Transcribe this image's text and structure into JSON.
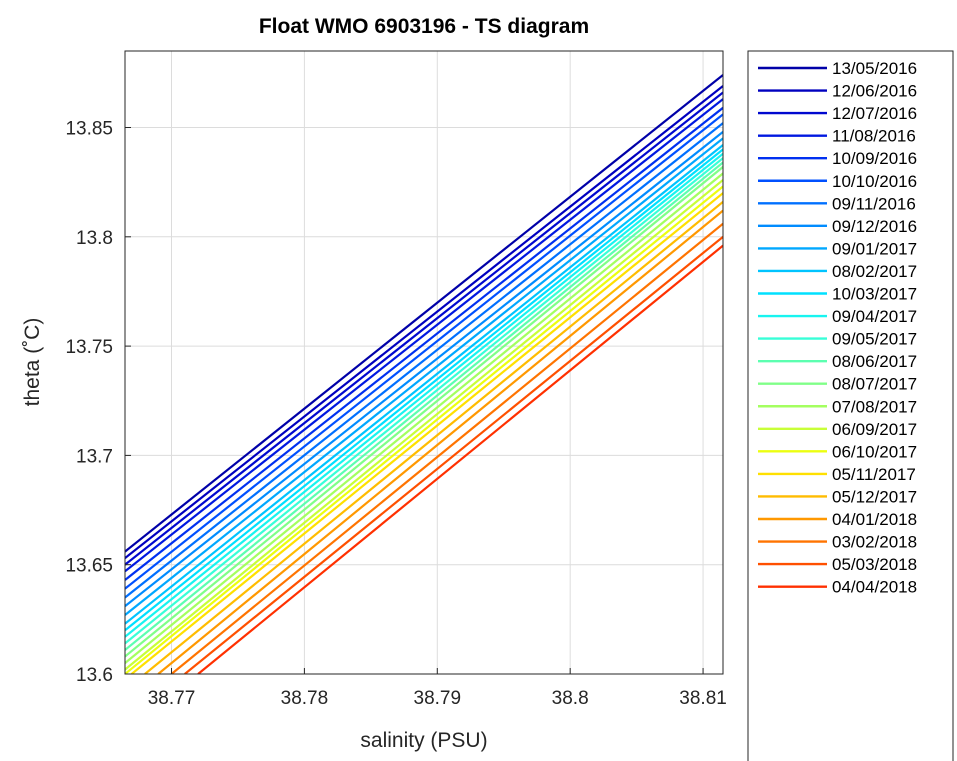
{
  "chart_data": {
    "type": "line",
    "title": "Float WMO 6903196 - TS diagram",
    "xlabel": "salinity (PSU)",
    "ylabel": "theta (˚C)",
    "xlim": [
      38.7665,
      38.8115
    ],
    "ylim": [
      13.6,
      13.885
    ],
    "x_ticks": [
      38.77,
      38.78,
      38.79,
      38.8,
      38.81
    ],
    "x_tick_labels": [
      "38.77",
      "38.78",
      "38.79",
      "38.8",
      "38.81"
    ],
    "y_ticks": [
      13.6,
      13.65,
      13.7,
      13.75,
      13.8,
      13.85
    ],
    "y_tick_labels": [
      "13.6",
      "13.65",
      "13.7",
      "13.75",
      "13.8",
      "13.85"
    ],
    "grid": true,
    "legend_position": "outside-right",
    "series": [
      {
        "name": "13/05/2016",
        "color": "#0000a8",
        "x": [
          38.7665,
          38.8115
        ],
        "y": [
          13.656,
          13.874
        ]
      },
      {
        "name": "12/06/2016",
        "color": "#0000bf",
        "x": [
          38.7665,
          38.8115
        ],
        "y": [
          13.653,
          13.869
        ]
      },
      {
        "name": "12/07/2016",
        "color": "#0008cf",
        "x": [
          38.7665,
          38.8115
        ],
        "y": [
          13.65,
          13.866
        ]
      },
      {
        "name": "11/08/2016",
        "color": "#0018e0",
        "x": [
          38.7665,
          38.8115
        ],
        "y": [
          13.647,
          13.863
        ]
      },
      {
        "name": "10/09/2016",
        "color": "#0030f0",
        "x": [
          38.7665,
          38.8115
        ],
        "y": [
          13.643,
          13.859
        ]
      },
      {
        "name": "10/10/2016",
        "color": "#0050ff",
        "x": [
          38.7665,
          38.8115
        ],
        "y": [
          13.639,
          13.856
        ]
      },
      {
        "name": "09/11/2016",
        "color": "#0070ff",
        "x": [
          38.7665,
          38.8115
        ],
        "y": [
          13.635,
          13.852
        ]
      },
      {
        "name": "09/12/2016",
        "color": "#008cff",
        "x": [
          38.7665,
          38.8115
        ],
        "y": [
          13.631,
          13.848
        ]
      },
      {
        "name": "09/01/2017",
        "color": "#00a8ff",
        "x": [
          38.7665,
          38.8115
        ],
        "y": [
          13.627,
          13.845
        ]
      },
      {
        "name": "08/02/2017",
        "color": "#00c4ff",
        "x": [
          38.7665,
          38.8115
        ],
        "y": [
          13.623,
          13.842
        ]
      },
      {
        "name": "10/03/2017",
        "color": "#00e0ff",
        "x": [
          38.7665,
          38.8115
        ],
        "y": [
          13.62,
          13.84
        ]
      },
      {
        "name": "09/04/2017",
        "color": "#18f4f0",
        "x": [
          38.7665,
          38.8115
        ],
        "y": [
          13.617,
          13.838
        ]
      },
      {
        "name": "09/05/2017",
        "color": "#38ffd8",
        "x": [
          38.7665,
          38.8115
        ],
        "y": [
          13.614,
          13.836
        ]
      },
      {
        "name": "08/06/2017",
        "color": "#5cffb0",
        "x": [
          38.7665,
          38.8115
        ],
        "y": [
          13.611,
          13.834
        ]
      },
      {
        "name": "08/07/2017",
        "color": "#80ff88",
        "x": [
          38.7665,
          38.8115
        ],
        "y": [
          13.608,
          13.832
        ]
      },
      {
        "name": "07/08/2017",
        "color": "#a4ff60",
        "x": [
          38.7665,
          38.8115
        ],
        "y": [
          13.605,
          13.829
        ]
      },
      {
        "name": "06/09/2017",
        "color": "#c8ff38",
        "x": [
          38.7665,
          38.8115
        ],
        "y": [
          13.602,
          13.826
        ]
      },
      {
        "name": "06/10/2017",
        "color": "#ecff10",
        "x": [
          38.7665,
          38.8115
        ],
        "y": [
          13.6,
          13.823
        ]
      },
      {
        "name": "05/11/2017",
        "color": "#ffe000",
        "x": [
          38.767,
          38.8115
        ],
        "y": [
          13.6,
          13.82
        ]
      },
      {
        "name": "05/12/2017",
        "color": "#ffbc00",
        "x": [
          38.768,
          38.8115
        ],
        "y": [
          13.6,
          13.816
        ]
      },
      {
        "name": "04/01/2018",
        "color": "#ff9800",
        "x": [
          38.769,
          38.8115
        ],
        "y": [
          13.6,
          13.812
        ]
      },
      {
        "name": "03/02/2018",
        "color": "#ff7400",
        "x": [
          38.77,
          38.8115
        ],
        "y": [
          13.6,
          13.806
        ]
      },
      {
        "name": "05/03/2018",
        "color": "#ff5000",
        "x": [
          38.771,
          38.8115
        ],
        "y": [
          13.6,
          13.8
        ]
      },
      {
        "name": "04/04/2018",
        "color": "#ff3000",
        "x": [
          38.772,
          38.8115
        ],
        "y": [
          13.6,
          13.796
        ]
      }
    ]
  }
}
